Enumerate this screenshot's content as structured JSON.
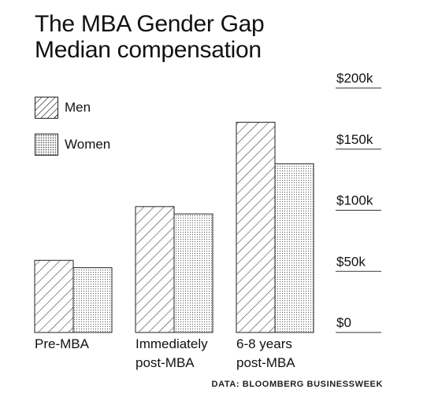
{
  "title_line1": "The MBA Gender Gap",
  "title_line2": "Median compensation",
  "source": "DATA: BLOOMBERG BUSINESSWEEK",
  "chart_data": {
    "type": "bar",
    "title": "The MBA Gender Gap Median compensation",
    "categories": [
      "Pre-MBA",
      "Immediately post-MBA",
      "6-8 years post-MBA"
    ],
    "category_lines": [
      [
        "Pre-MBA"
      ],
      [
        "Immediately",
        "post-MBA"
      ],
      [
        "6-8 years",
        "post-MBA"
      ]
    ],
    "series": [
      {
        "name": "Men",
        "values": [
          59000,
          103000,
          172000
        ],
        "pattern": "diagonal-hatch"
      },
      {
        "name": "Women",
        "values": [
          53000,
          97000,
          138000
        ],
        "pattern": "dots"
      }
    ],
    "ylim": [
      0,
      200000
    ],
    "yticks": [
      0,
      50000,
      100000,
      150000,
      200000
    ],
    "ytick_labels": [
      "$0",
      "$50k",
      "$100k",
      "$150k",
      "$200k"
    ],
    "legend_position": "top-left",
    "grid": false
  }
}
